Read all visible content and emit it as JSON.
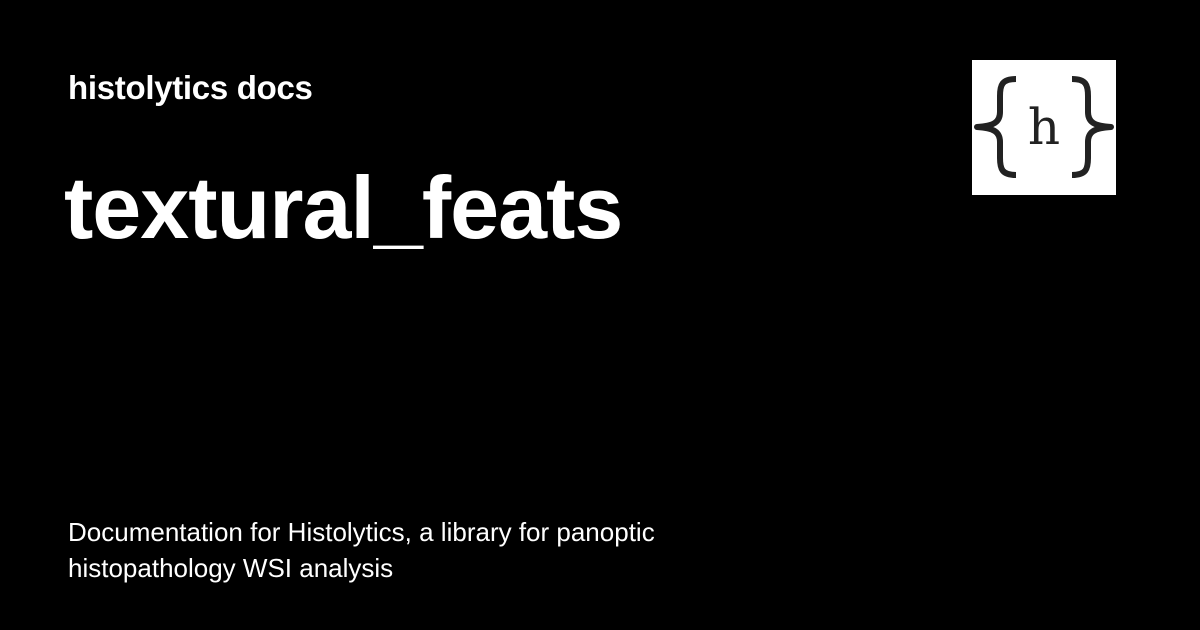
{
  "site": {
    "name": "histolytics docs"
  },
  "page": {
    "title": "textural_feats",
    "description": "Documentation for Histolytics, a library for panoptic histopathology WSI analysis"
  },
  "logo": {
    "icon": "histolytics-logo-braces-h",
    "glyph": "h",
    "background": "#ffffff",
    "foreground": "#222222"
  },
  "colors": {
    "background": "#000000",
    "text": "#ffffff"
  }
}
